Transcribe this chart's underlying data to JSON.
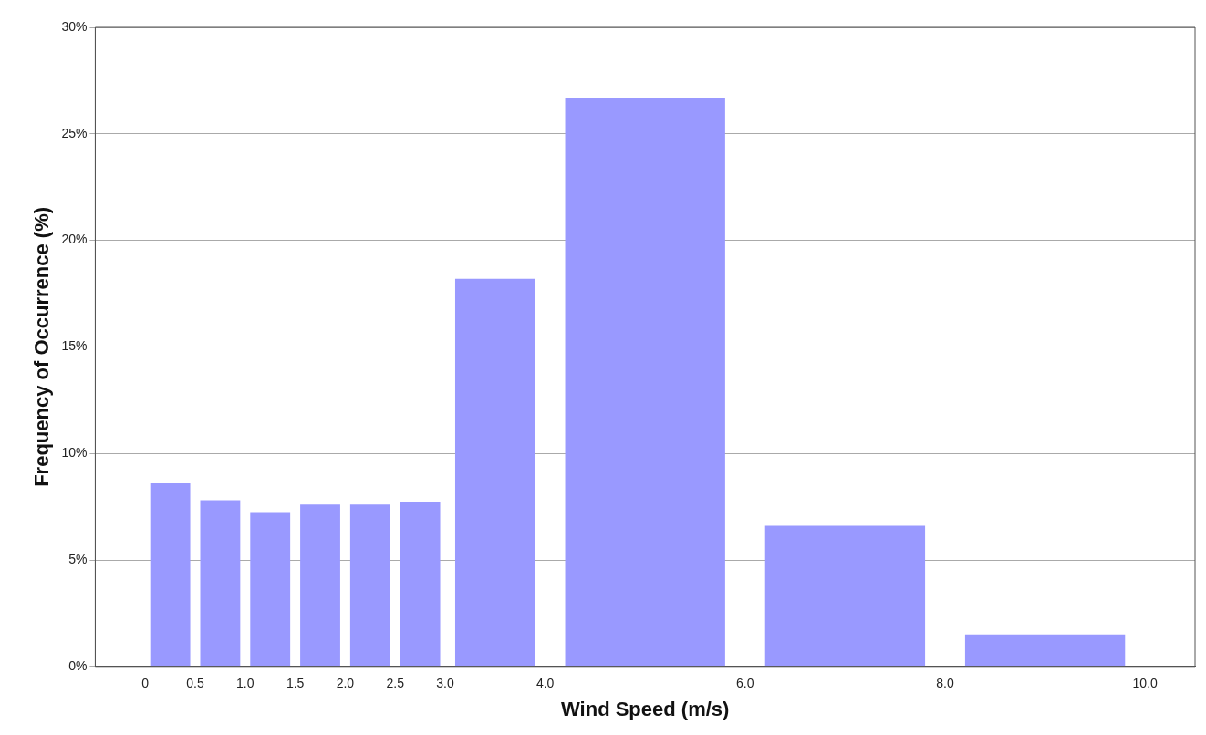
{
  "chart_data": {
    "type": "histogram",
    "xlabel": "Wind Speed (m/s)",
    "ylabel": "Frequency of Occurrence (%)",
    "bins": [
      0,
      0.5,
      1,
      1.5,
      2,
      2.5,
      3,
      4,
      6,
      8,
      10
    ],
    "values": [
      8.6,
      7.8,
      7.2,
      7.6,
      7.6,
      7.7,
      18.2,
      26.7,
      6.6,
      1.5
    ],
    "color": "#9999ff",
    "xlim": [
      -0.5,
      10.5
    ],
    "xticks": [
      {
        "value": 0,
        "label": "0"
      },
      {
        "value": 0.5,
        "label": "0.5"
      },
      {
        "value": 1,
        "label": "1.0"
      },
      {
        "value": 1.5,
        "label": "1.5"
      },
      {
        "value": 2,
        "label": "2.0"
      },
      {
        "value": 2.5,
        "label": "2.5"
      },
      {
        "value": 3,
        "label": "3.0"
      },
      {
        "value": 4,
        "label": "4.0"
      },
      {
        "value": 6,
        "label": "6.0"
      },
      {
        "value": 8,
        "label": "8.0"
      },
      {
        "value": 10,
        "label": "10.0"
      }
    ],
    "ylim": [
      0,
      30
    ],
    "yticks": [
      {
        "value": 0,
        "label": "0%"
      },
      {
        "value": 5,
        "label": "5%"
      },
      {
        "value": 10,
        "label": "10%"
      },
      {
        "value": 15,
        "label": "15%"
      },
      {
        "value": 20,
        "label": "20%"
      },
      {
        "value": 25,
        "label": "25%"
      },
      {
        "value": 30,
        "label": "30%"
      }
    ],
    "grid": "y"
  }
}
